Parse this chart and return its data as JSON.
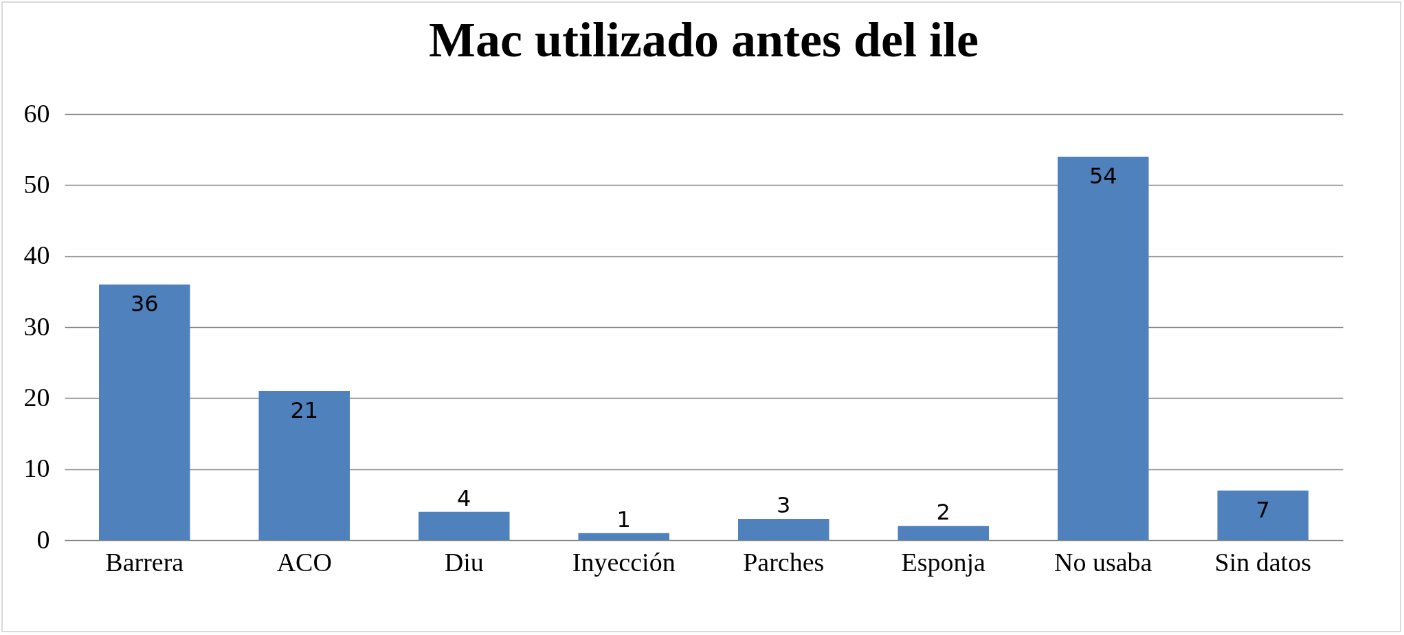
{
  "chart_data": {
    "type": "bar",
    "title": "Mac utilizado antes del ile",
    "categories": [
      "Barrera",
      "ACO",
      "Diu",
      "Inyección",
      "Parches",
      "Esponja",
      "No usaba",
      "Sin datos"
    ],
    "values": [
      36,
      21,
      4,
      1,
      3,
      2,
      54,
      7
    ],
    "color": "#4f81bd",
    "ylim": [
      0,
      60
    ],
    "yticks": [
      0,
      10,
      20,
      30,
      40,
      50,
      60
    ],
    "grid": "y",
    "data_labels": true
  }
}
